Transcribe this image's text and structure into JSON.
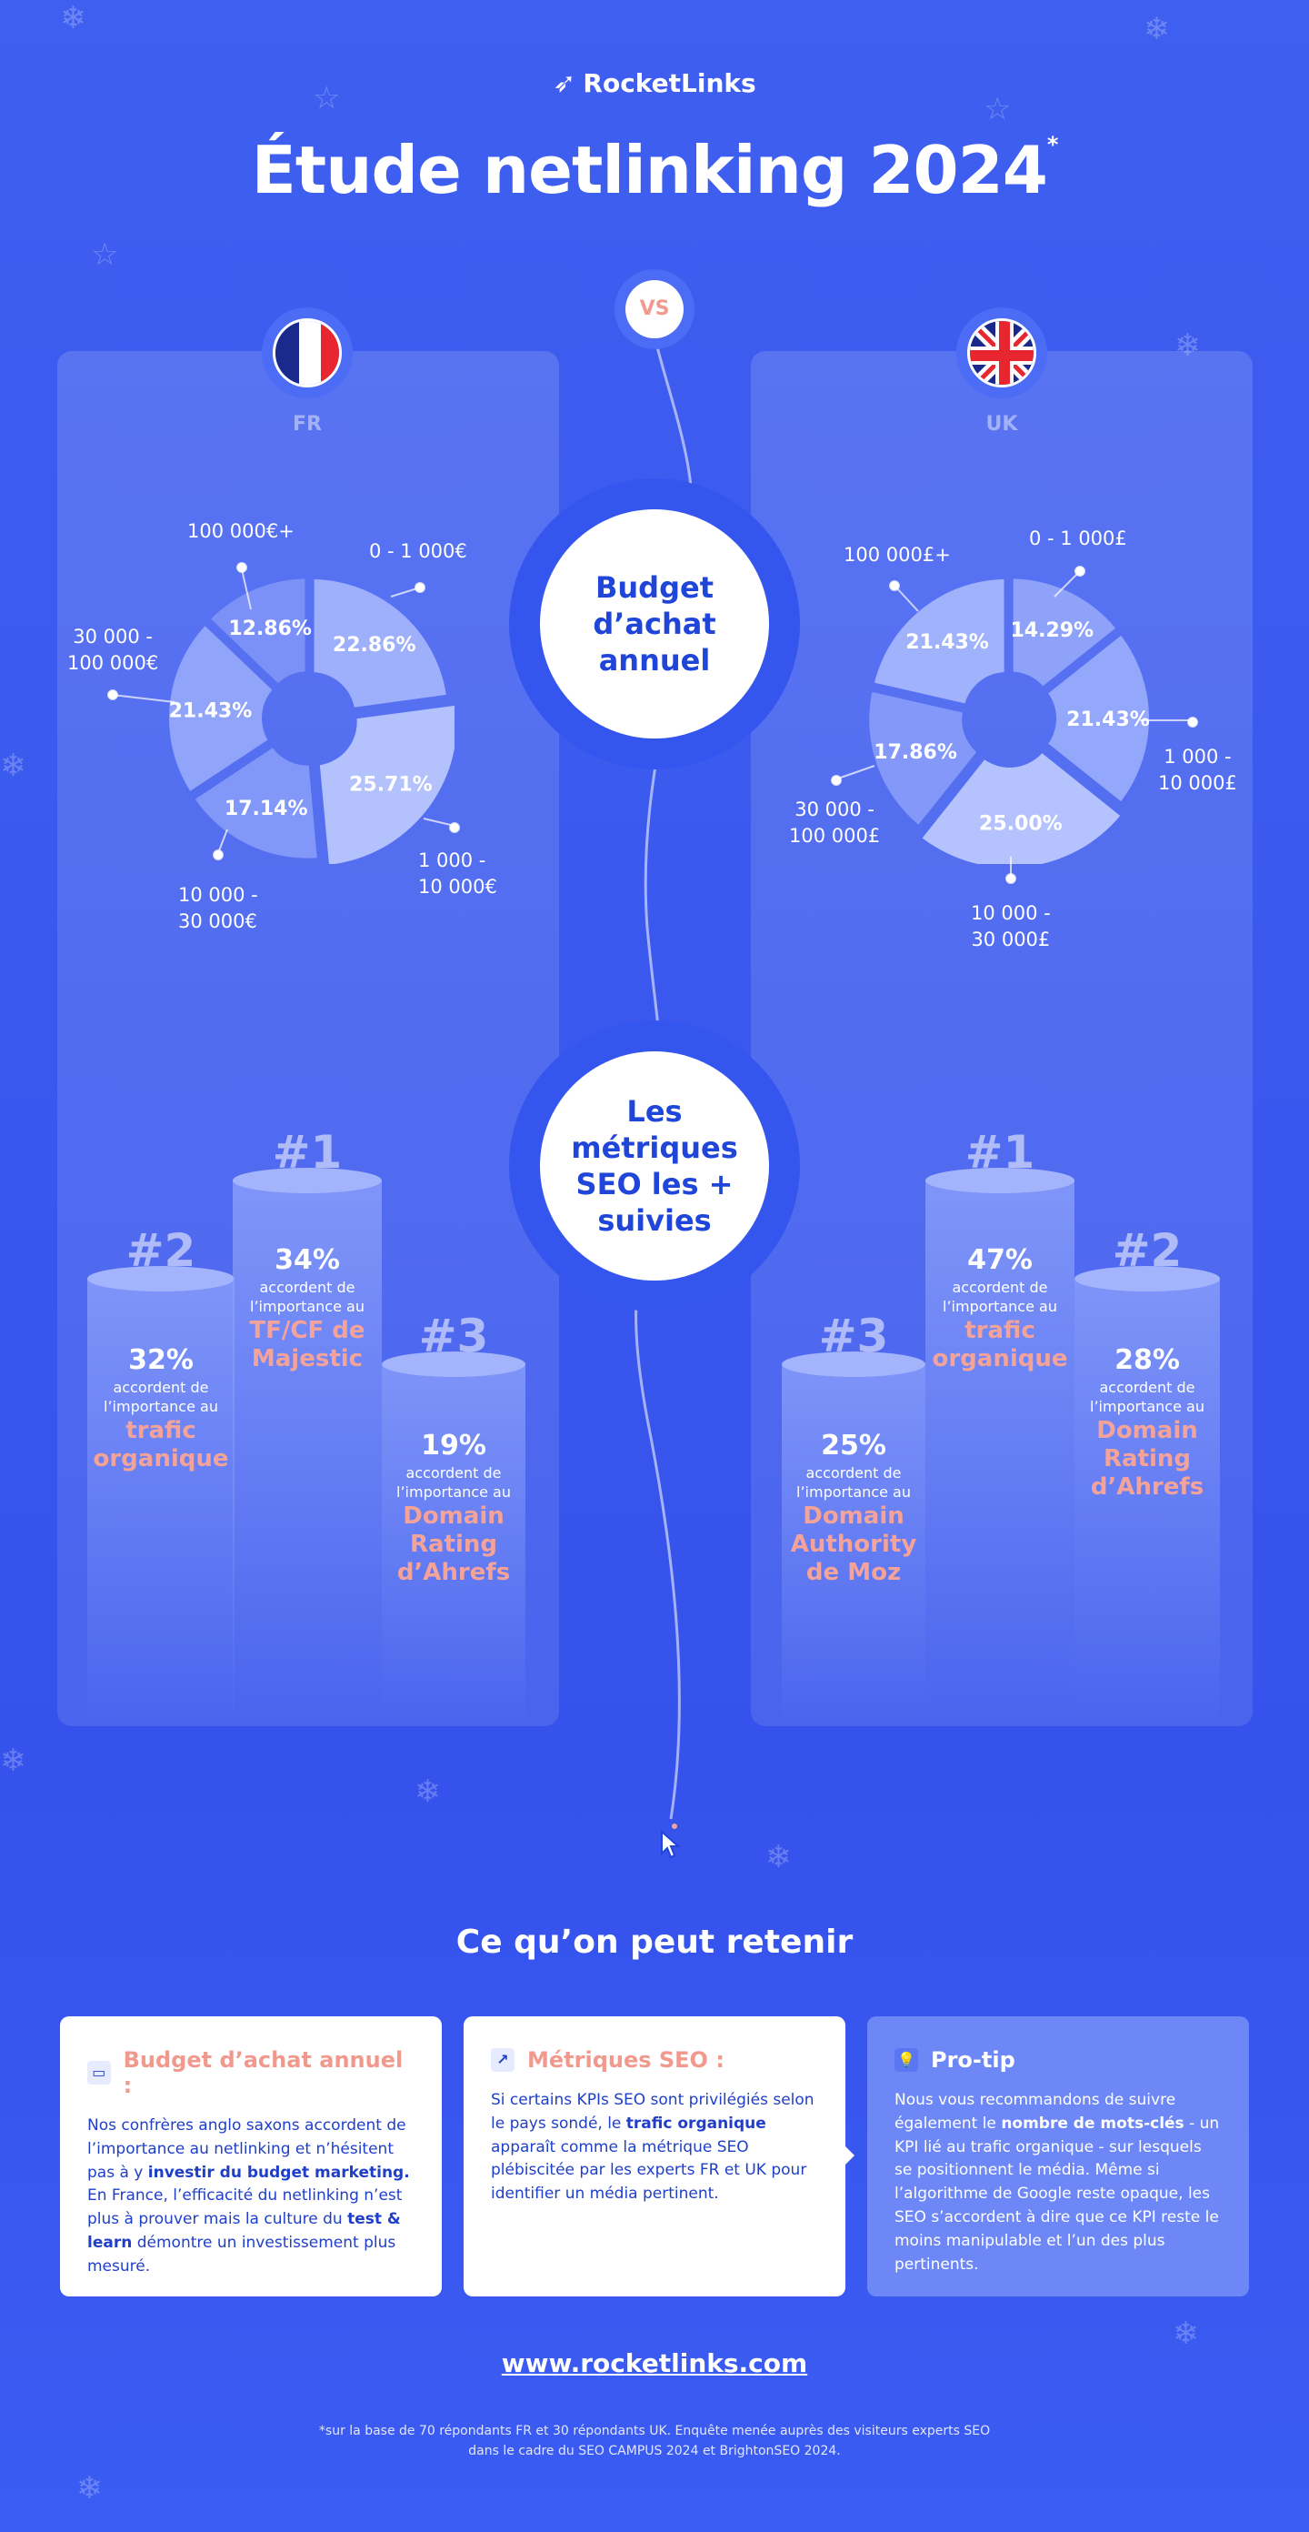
{
  "brand": "RocketLinks",
  "title": "Étude netlinking 2024",
  "title_mark": "*",
  "vs": "VS",
  "countries": {
    "left": "FR",
    "right": "UK"
  },
  "center": {
    "budget_line1": "Budget",
    "budget_line2": "d’achat",
    "budget_line3": "annuel",
    "metrics_line1": "Les",
    "metrics_line2": "métriques",
    "metrics_line3": "SEO les +",
    "metrics_line4": "suivies"
  },
  "pie_fr": {
    "slices": [
      {
        "range": "0 - 1 000€",
        "pct": "22.86%",
        "value": 22.86
      },
      {
        "range_1": "1 000 -",
        "range_2": "10 000€",
        "pct": "25.71%",
        "value": 25.71
      },
      {
        "range_1": "10 000 -",
        "range_2": "30 000€",
        "pct": "17.14%",
        "value": 17.14
      },
      {
        "range_1": "30 000 -",
        "range_2": "100 000€",
        "pct": "21.43%",
        "value": 21.43
      },
      {
        "range": "100 000€+",
        "pct": "12.86%",
        "value": 12.86
      }
    ]
  },
  "pie_uk": {
    "slices": [
      {
        "range": "0 - 1 000£",
        "pct": "14.29%",
        "value": 14.29
      },
      {
        "range_1": "1 000 -",
        "range_2": "10 000£",
        "pct": "21.43%",
        "value": 21.43
      },
      {
        "range_1": "10 000 -",
        "range_2": "30 000£",
        "pct": "25.00%",
        "value": 25.0
      },
      {
        "range_1": "30 000 -",
        "range_2": "100 000£",
        "pct": "17.86%",
        "value": 17.86
      },
      {
        "range": "100 000£+",
        "pct": "21.43%",
        "value": 21.43
      }
    ]
  },
  "podium_fr": {
    "first": {
      "rank": "#1",
      "pct": "34%",
      "sub1": "accordent de",
      "sub2": "l’importance au",
      "metric1": "TF/CF de",
      "metric2": "Majestic"
    },
    "second": {
      "rank": "#2",
      "pct": "32%",
      "sub1": "accordent de",
      "sub2": "l’importance au",
      "metric1": "trafic",
      "metric2": "organique"
    },
    "third": {
      "rank": "#3",
      "pct": "19%",
      "sub1": "accordent de",
      "sub2": "l’importance au",
      "metric1": "Domain",
      "metric2": "Rating",
      "metric3": "d’Ahrefs"
    }
  },
  "podium_uk": {
    "first": {
      "rank": "#1",
      "pct": "47%",
      "sub1": "accordent de",
      "sub2": "l’importance au",
      "metric1": "trafic",
      "metric2": "organique"
    },
    "second": {
      "rank": "#2",
      "pct": "28%",
      "sub1": "accordent de",
      "sub2": "l’importance au",
      "metric1": "Domain",
      "metric2": "Rating",
      "metric3": "d’Ahrefs"
    },
    "third": {
      "rank": "#3",
      "pct": "25%",
      "sub1": "accordent de",
      "sub2": "l’importance au",
      "metric1": "Domain",
      "metric2": "Authority",
      "metric3": "de Moz"
    }
  },
  "retain_title": "Ce qu’on peut retenir",
  "cards": [
    {
      "title": "Budget d’achat annuel :",
      "t1": "Nos confrères anglo saxons accordent de l’importance au netlinking et n’hésitent pas à y ",
      "b1": "investir du budget marketing.",
      "t2": " En France, l’efficacité du netlinking n’est plus à prouver mais la culture du ",
      "b2": "test & learn",
      "t3": " démontre un investissement plus mesuré."
    },
    {
      "title": "Métriques SEO :",
      "t1": "Si certains KPIs SEO sont privilégiés selon le pays sondé, le ",
      "b1": "trafic organique",
      "t2": " apparaît comme la métrique SEO plébiscitée par les experts FR et UK pour identifier un média pertinent."
    },
    {
      "title": "Pro-tip",
      "t1": "Nous vous recommandons de suivre également le ",
      "b1": "nombre de mots-clés",
      "t2": " - un KPI lié au trafic organique - sur lesquels se positionnent le média. Même si l’algorithme de Google reste opaque, les SEO s’accordent à dire que ce KPI reste le moins manipulable et l’un des plus pertinents."
    }
  ],
  "url": "www.rocketlinks.com",
  "footnote_1": "*sur la base de 70 répondants FR et 30 répondants UK. Enquête menée auprès des visiteurs experts SEO",
  "footnote_2": "dans le cadre du SEO CAMPUS 2024 et BrightonSEO 2024.",
  "colors": {
    "pink": "#f4a39a",
    "navy": "#1f45d9",
    "bg": "#3d5cf0"
  }
}
